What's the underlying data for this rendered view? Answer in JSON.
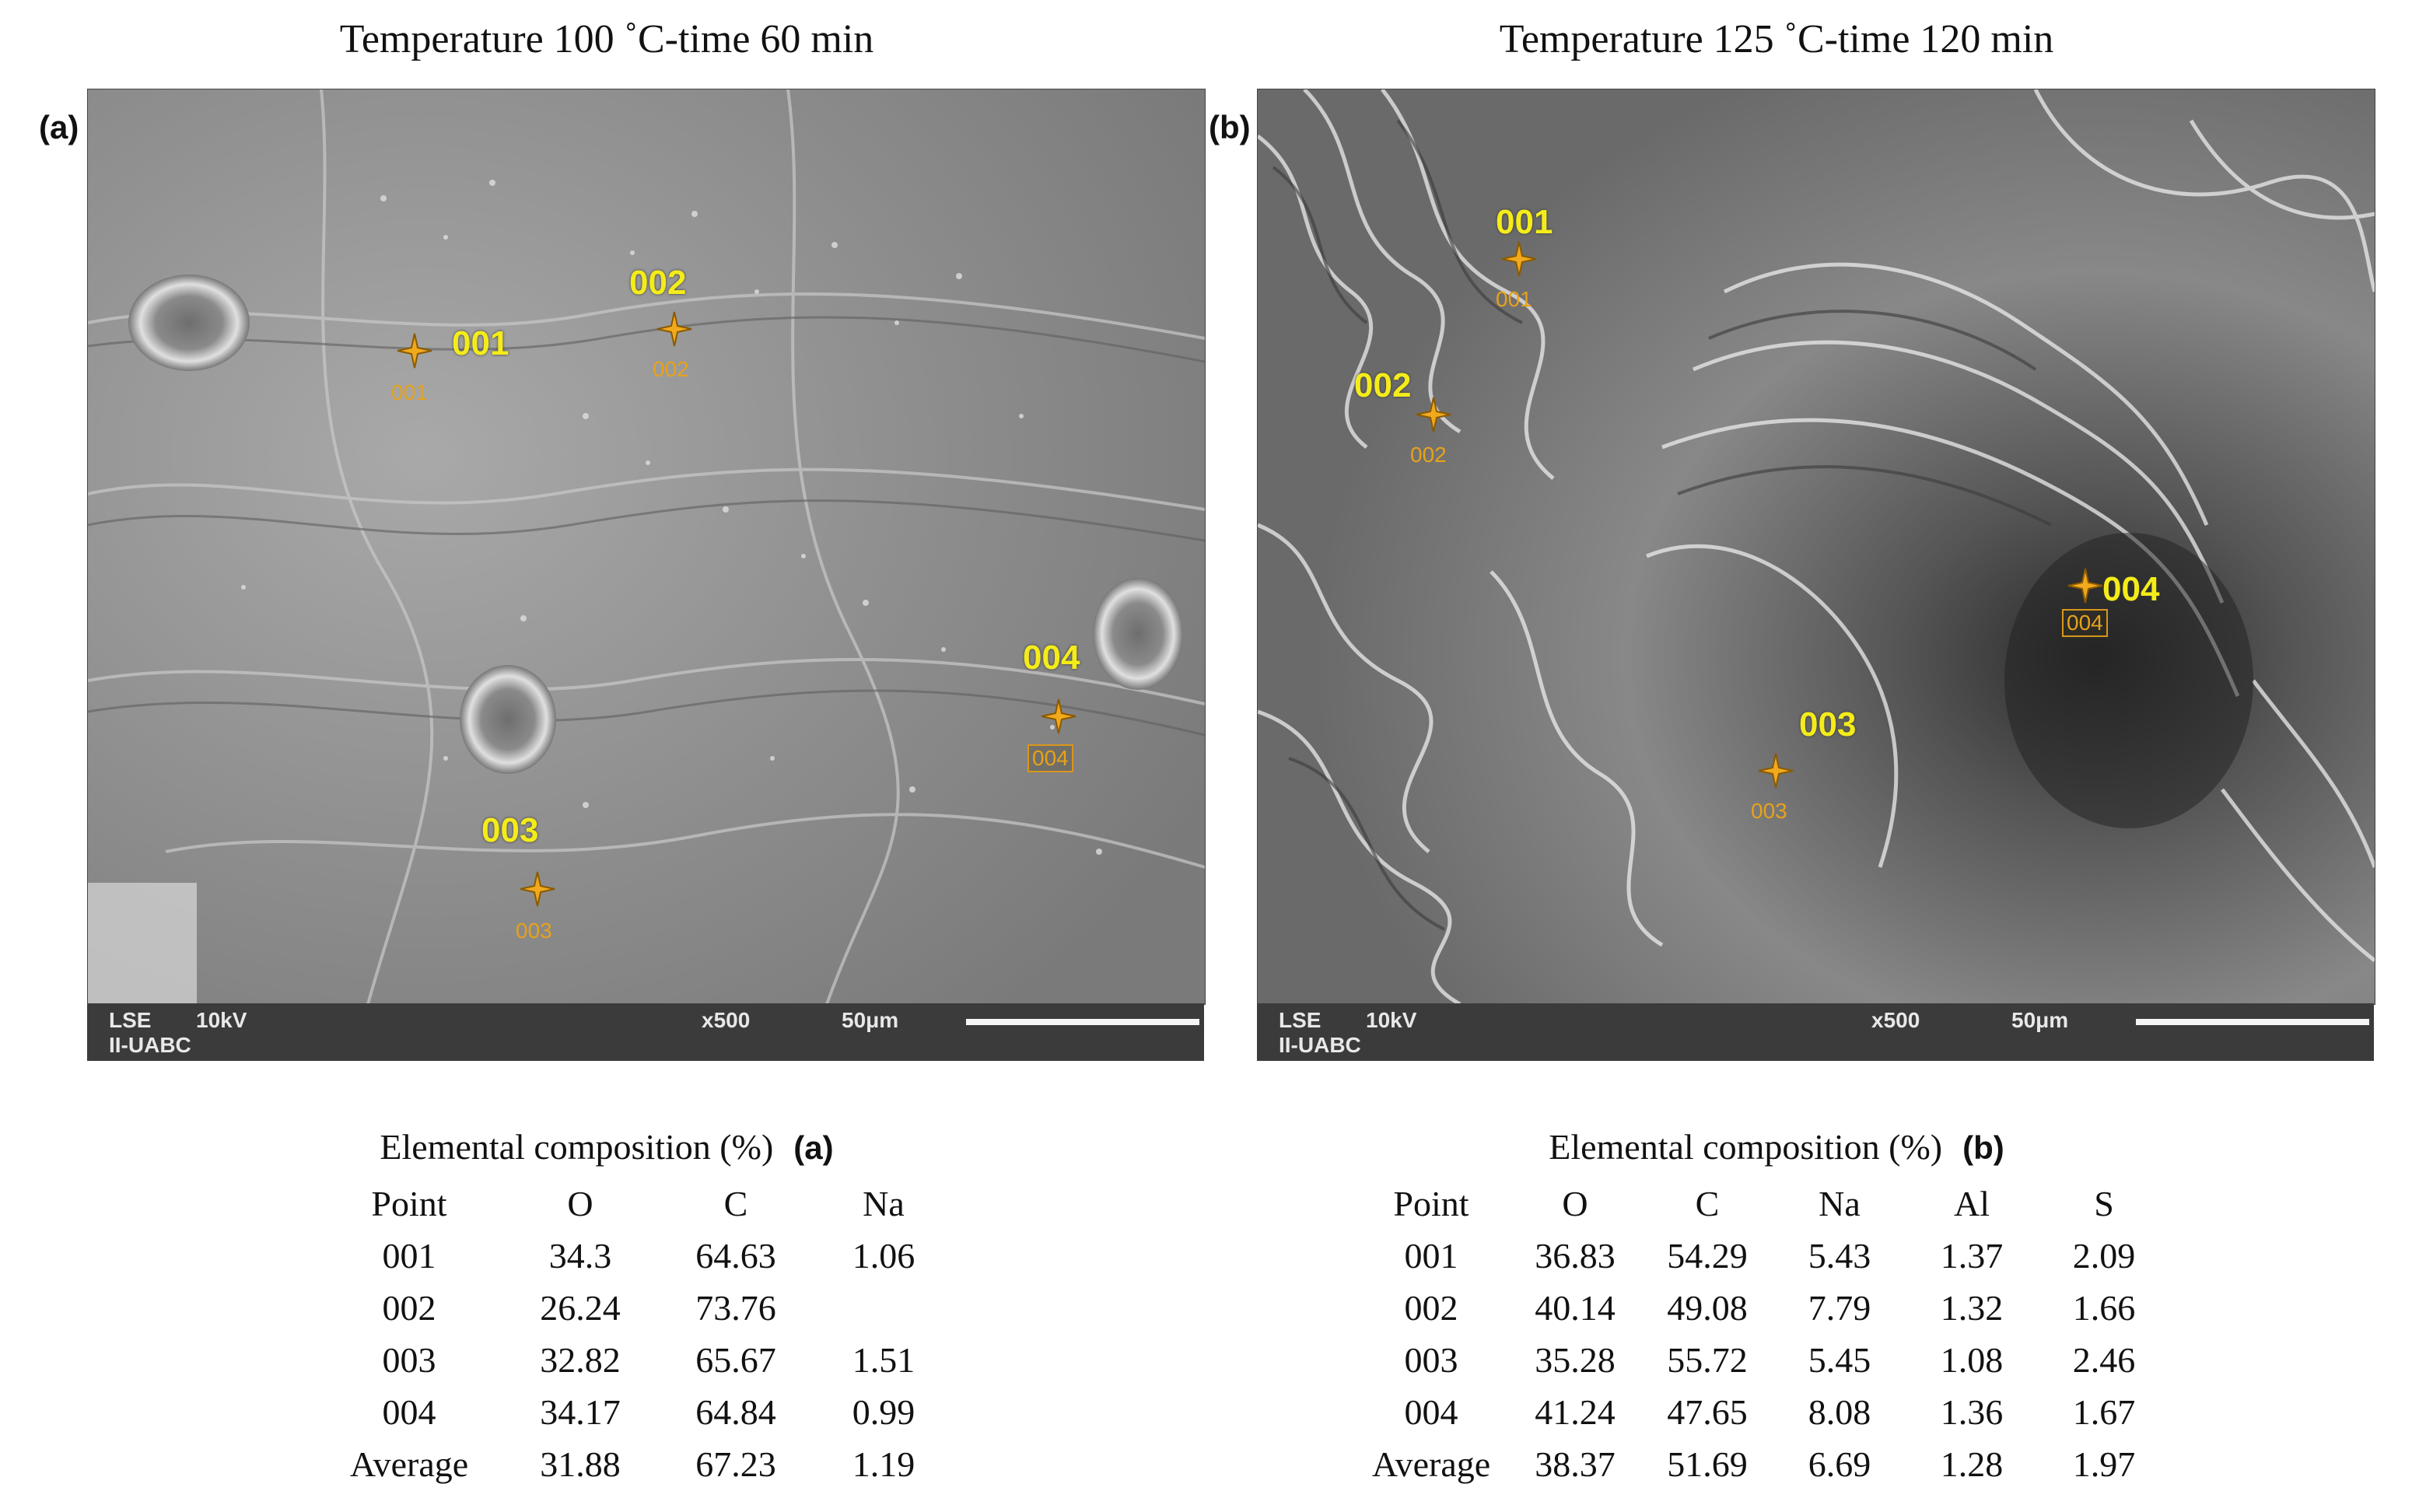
{
  "panels": [
    {
      "title": "Temperature 100 ˚C-time 60 min",
      "letter": "(a)",
      "databar": {
        "mode": "LSE",
        "voltage": "10kV",
        "lab": "II-UABC",
        "mag": "x500",
        "scale": "50μm"
      },
      "markers": [
        {
          "num": "001",
          "small": "001",
          "boxed": false
        },
        {
          "num": "002",
          "small": "002",
          "boxed": false
        },
        {
          "num": "003",
          "small": "003",
          "boxed": false
        },
        {
          "num": "004",
          "small": "004",
          "boxed": true
        }
      ],
      "table": {
        "caption": "Elemental composition (%)",
        "letter": "(a)",
        "headers": [
          "Point",
          "O",
          "C",
          "Na"
        ],
        "rows": [
          [
            "001",
            "34.3",
            "64.63",
            "1.06"
          ],
          [
            "002",
            "26.24",
            "73.76",
            ""
          ],
          [
            "003",
            "32.82",
            "65.67",
            "1.51"
          ],
          [
            "004",
            "34.17",
            "64.84",
            "0.99"
          ],
          [
            "Average",
            "31.88",
            "67.23",
            "1.19"
          ]
        ]
      }
    },
    {
      "title": "Temperature 125 ˚C-time 120 min",
      "letter": "(b)",
      "databar": {
        "mode": "LSE",
        "voltage": "10kV",
        "lab": "II-UABC",
        "mag": "x500",
        "scale": "50μm"
      },
      "markers": [
        {
          "num": "001",
          "small": "001",
          "boxed": false
        },
        {
          "num": "002",
          "small": "002",
          "boxed": false
        },
        {
          "num": "003",
          "small": "003",
          "boxed": false
        },
        {
          "num": "004",
          "small": "004",
          "boxed": true
        }
      ],
      "table": {
        "caption": "Elemental composition (%)",
        "letter": "(b)",
        "headers": [
          "Point",
          "O",
          "C",
          "Na",
          "Al",
          "S"
        ],
        "rows": [
          [
            "001",
            "36.83",
            "54.29",
            "5.43",
            "1.37",
            "2.09"
          ],
          [
            "002",
            "40.14",
            "49.08",
            "7.79",
            "1.32",
            "1.66"
          ],
          [
            "003",
            "35.28",
            "55.72",
            "5.45",
            "1.08",
            "2.46"
          ],
          [
            "004",
            "41.24",
            "47.65",
            "8.08",
            "1.36",
            "1.67"
          ],
          [
            "Average",
            "38.37",
            "51.69",
            "6.69",
            "1.28",
            "1.97"
          ]
        ]
      }
    }
  ]
}
